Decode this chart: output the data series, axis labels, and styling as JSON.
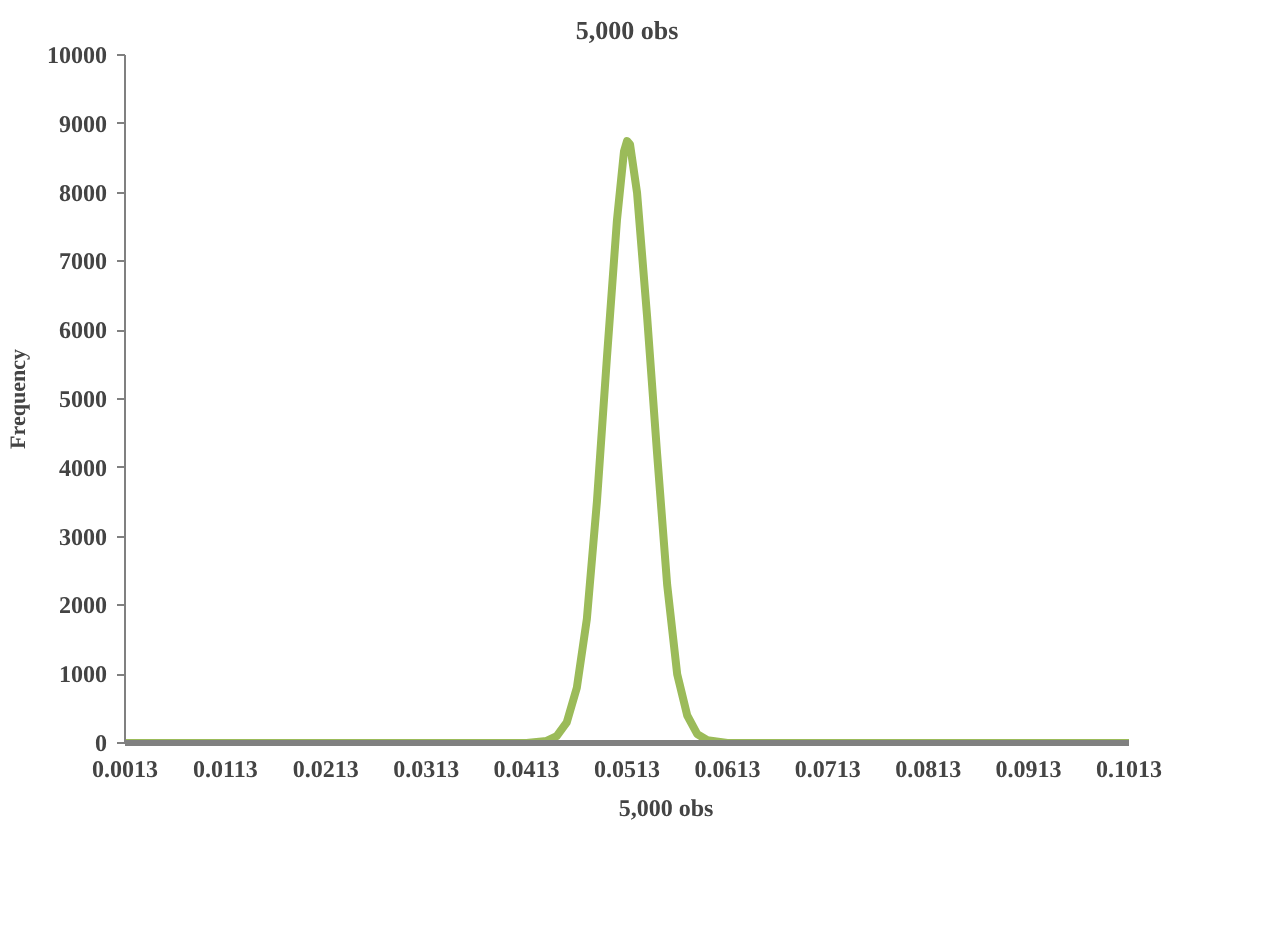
{
  "chart_data": {
    "type": "line",
    "title": "5,000 obs",
    "ylabel": "Frequency",
    "x": [
      0.0013,
      0.0113,
      0.0213,
      0.0313,
      0.0413,
      0.0433,
      0.0443,
      0.0453,
      0.0463,
      0.0473,
      0.0483,
      0.0493,
      0.0503,
      0.051,
      0.0513,
      0.0516,
      0.0523,
      0.0533,
      0.0543,
      0.0553,
      0.0563,
      0.0573,
      0.0583,
      0.0593,
      0.0613,
      0.0713,
      0.0813,
      0.0913,
      0.1013
    ],
    "series": [
      {
        "name": "5,000 obs",
        "color": "#9bbb59",
        "values": [
          0,
          0,
          0,
          0,
          0,
          30,
          100,
          300,
          800,
          1800,
          3500,
          5600,
          7600,
          8600,
          8750,
          8700,
          8000,
          6200,
          4200,
          2300,
          1000,
          400,
          130,
          40,
          0,
          0,
          0,
          0,
          0
        ]
      }
    ],
    "xlim": [
      0.0013,
      0.1013
    ],
    "xticks": [
      0.0013,
      0.0113,
      0.0213,
      0.0313,
      0.0413,
      0.0513,
      0.0613,
      0.0713,
      0.0813,
      0.0913,
      0.1013
    ],
    "ylim": [
      0,
      10000
    ],
    "yticks": [
      0,
      1000,
      2000,
      3000,
      4000,
      5000,
      6000,
      7000,
      8000,
      9000,
      10000
    ],
    "grid": false,
    "legend": "bottom",
    "marker": "none",
    "line_style": "solid"
  }
}
